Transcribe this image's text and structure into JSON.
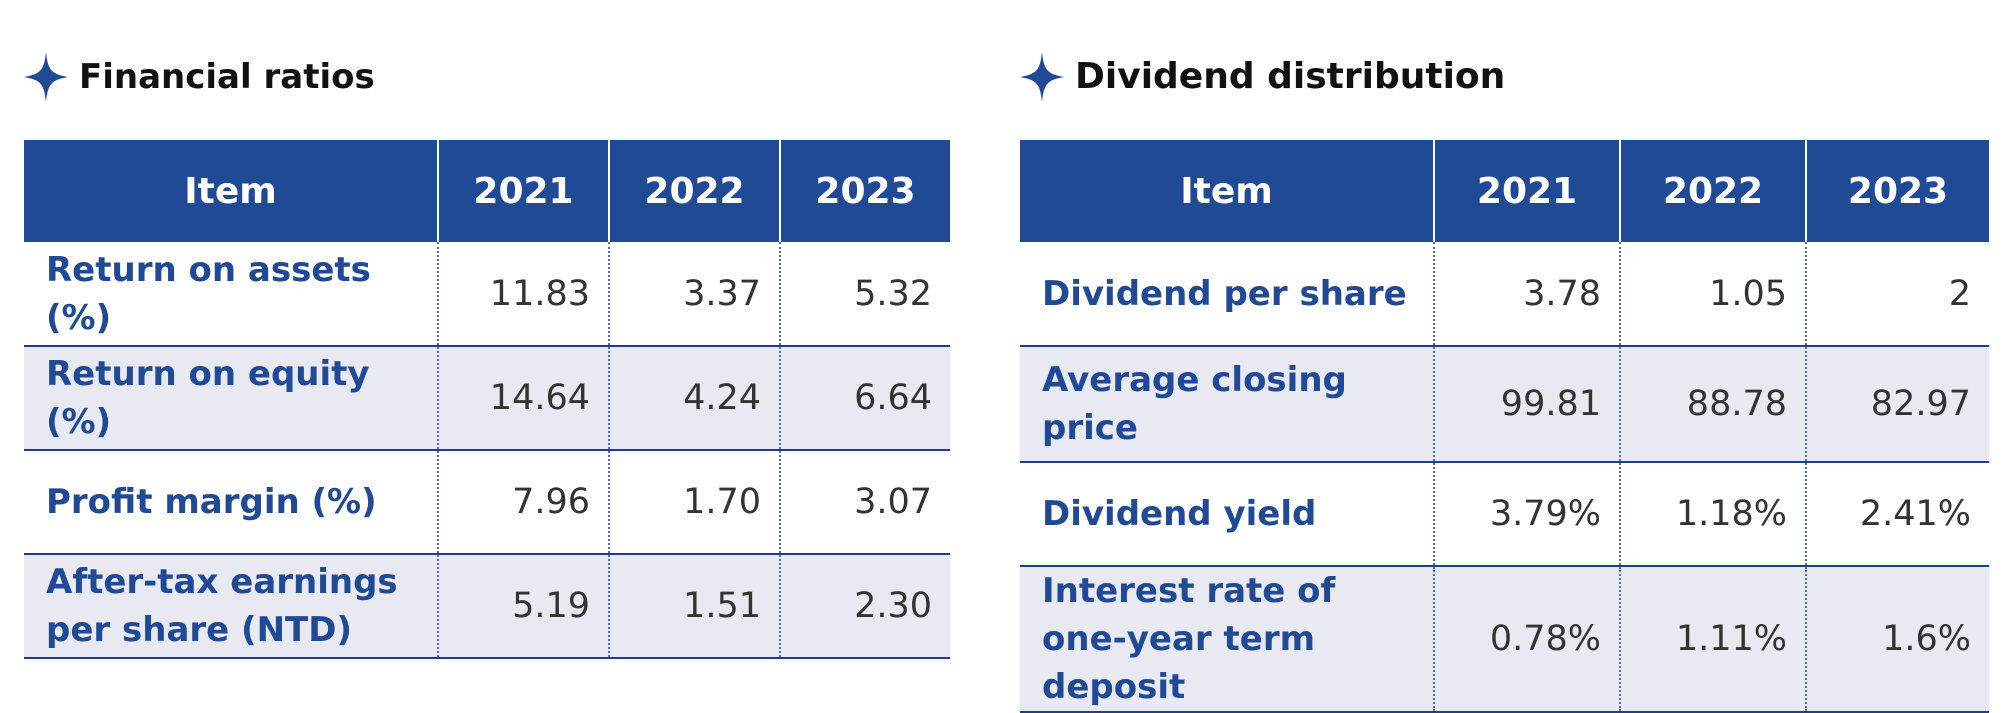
{
  "financial_ratios": {
    "title": "Financial ratios",
    "header": [
      "Item",
      "2021",
      "2022",
      "2023"
    ],
    "rows": [
      {
        "item": "Return on assets (%)",
        "v2021": "11.83",
        "v2022": "3.37",
        "v2023": "5.32"
      },
      {
        "item": "Return on equity (%)",
        "v2021": "14.64",
        "v2022": "4.24",
        "v2023": "6.64"
      },
      {
        "item": "Profit margin (%)",
        "v2021": "7.96",
        "v2022": "1.70",
        "v2023": "3.07"
      },
      {
        "item": "After-tax earnings per share (NTD)",
        "v2021": "5.19",
        "v2022": "1.51",
        "v2023": "2.30"
      }
    ]
  },
  "dividend_distribution": {
    "title": "Dividend distribution",
    "header": [
      "Item",
      "2021",
      "2022",
      "2023"
    ],
    "rows": [
      {
        "item": "Dividend per share",
        "v2021": "3.78",
        "v2022": "1.05",
        "v2023": "2"
      },
      {
        "item": "Average closing price",
        "v2021": "99.81",
        "v2022": "88.78",
        "v2023": "82.97"
      },
      {
        "item": "Dividend yield",
        "v2021": "3.79%",
        "v2022": "1.18%",
        "v2023": "2.41%"
      },
      {
        "item": "Interest rate of one-year term deposit",
        "v2021": "0.78%",
        "v2022": "1.11%",
        "v2023": "1.6%"
      }
    ]
  },
  "colors": {
    "header_bg": "#204a96",
    "label_text": "#204a96",
    "shaded_row": "#e8e9f1",
    "star": "#204a96"
  },
  "icons": {
    "heading_icon": "four-point-star-icon"
  }
}
